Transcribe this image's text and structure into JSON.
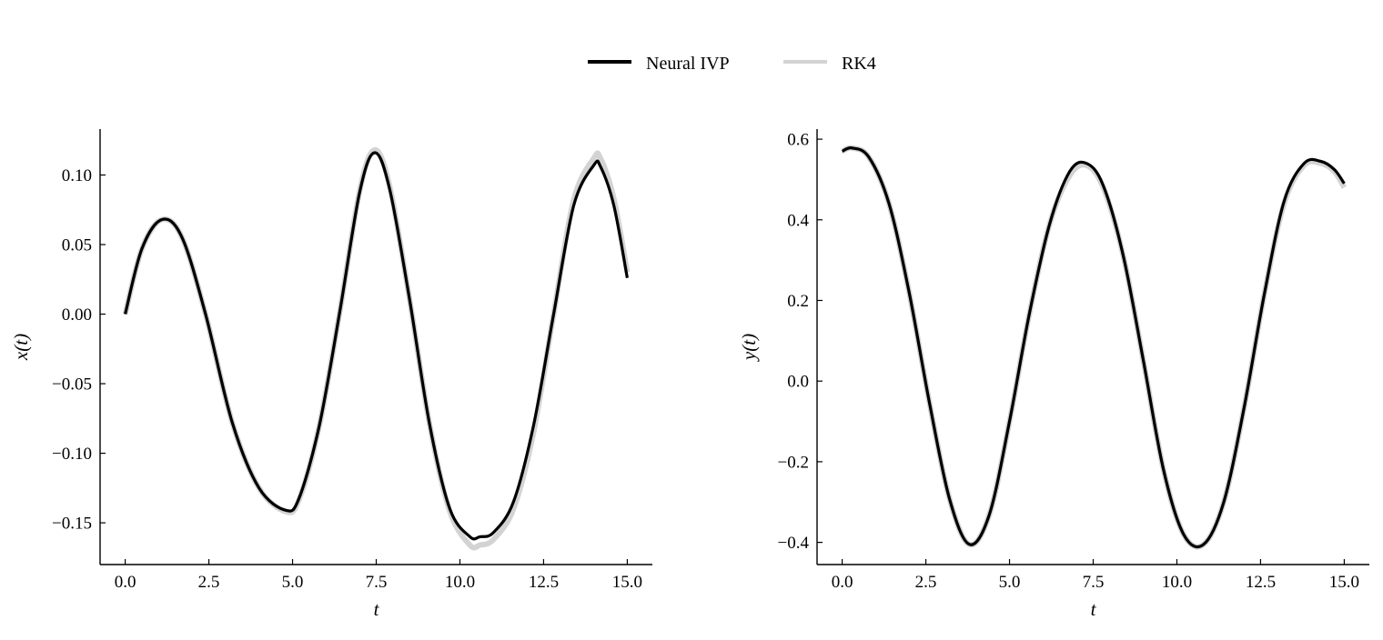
{
  "legend": {
    "items": [
      {
        "label": "Neural IVP",
        "color": "#000000"
      },
      {
        "label": "RK4",
        "color": "#d3d3d3"
      }
    ]
  },
  "chart_data": [
    {
      "type": "line",
      "xlabel": "t",
      "ylabel": "x(t)",
      "xlim": [
        -0.75,
        15.75
      ],
      "ylim": [
        -0.18,
        0.133
      ],
      "xticks": [
        0.0,
        2.5,
        5.0,
        7.5,
        10.0,
        12.5,
        15.0
      ],
      "xtick_labels": [
        "0.0",
        "2.5",
        "5.0",
        "7.5",
        "10.0",
        "12.5",
        "15.0"
      ],
      "yticks": [
        -0.15,
        -0.1,
        -0.05,
        0.0,
        0.05,
        0.1
      ],
      "ytick_labels": [
        "−0.15",
        "−0.10",
        "−0.05",
        "0.00",
        "0.05",
        "0.10"
      ],
      "grid": false,
      "series": [
        {
          "name": "RK4",
          "color": "#d3d3d3",
          "x": [
            0.0,
            0.5,
            1.1,
            1.7,
            2.4,
            3.2,
            4.0,
            4.8,
            5.2,
            5.8,
            6.4,
            7.0,
            7.45,
            7.9,
            8.5,
            9.1,
            9.7,
            10.3,
            10.6,
            11.0,
            11.6,
            12.2,
            12.8,
            13.4,
            14.0,
            14.2,
            14.6,
            15.0
          ],
          "y": [
            0.0,
            0.047,
            0.068,
            0.055,
            0.0,
            -0.078,
            -0.125,
            -0.142,
            -0.133,
            -0.08,
            0.0,
            0.088,
            0.118,
            0.092,
            0.01,
            -0.08,
            -0.142,
            -0.166,
            -0.166,
            -0.162,
            -0.14,
            -0.085,
            0.0,
            0.082,
            0.112,
            0.112,
            0.083,
            0.03
          ]
        },
        {
          "name": "Neural IVP",
          "color": "#000000",
          "x": [
            0.0,
            0.5,
            1.1,
            1.7,
            2.4,
            3.2,
            4.0,
            4.8,
            5.2,
            5.8,
            6.4,
            7.0,
            7.45,
            7.9,
            8.5,
            9.1,
            9.7,
            10.3,
            10.6,
            11.0,
            11.6,
            12.2,
            12.8,
            13.4,
            14.0,
            14.2,
            14.6,
            15.0
          ],
          "y": [
            0.0,
            0.047,
            0.068,
            0.055,
            0.0,
            -0.078,
            -0.125,
            -0.141,
            -0.132,
            -0.08,
            0.0,
            0.087,
            0.116,
            0.09,
            0.01,
            -0.08,
            -0.14,
            -0.16,
            -0.16,
            -0.157,
            -0.135,
            -0.08,
            0.0,
            0.078,
            0.107,
            0.106,
            0.078,
            0.026
          ]
        }
      ]
    },
    {
      "type": "line",
      "xlabel": "t",
      "ylabel": "y(t)",
      "xlim": [
        -0.75,
        15.75
      ],
      "ylim": [
        -0.455,
        0.625
      ],
      "xticks": [
        0.0,
        2.5,
        5.0,
        7.5,
        10.0,
        12.5,
        15.0
      ],
      "xtick_labels": [
        "0.0",
        "2.5",
        "5.0",
        "7.5",
        "10.0",
        "12.5",
        "15.0"
      ],
      "yticks": [
        -0.4,
        -0.2,
        0.0,
        0.2,
        0.4,
        0.6
      ],
      "ytick_labels": [
        "−0.4",
        "−0.2",
        "0.0",
        "0.2",
        "0.4",
        "0.6"
      ],
      "grid": false,
      "series": [
        {
          "name": "RK4",
          "color": "#d3d3d3",
          "x": [
            0.0,
            0.3,
            0.8,
            1.4,
            2.0,
            2.6,
            3.2,
            3.8,
            4.4,
            5.0,
            5.6,
            6.2,
            6.8,
            7.3,
            7.8,
            8.4,
            9.0,
            9.6,
            10.2,
            10.8,
            11.4,
            12.0,
            12.6,
            13.2,
            13.8,
            14.3,
            14.7,
            15.0
          ],
          "y": [
            0.57,
            0.578,
            0.555,
            0.44,
            0.22,
            -0.05,
            -0.29,
            -0.405,
            -0.33,
            -0.1,
            0.17,
            0.39,
            0.51,
            0.535,
            0.48,
            0.31,
            0.05,
            -0.22,
            -0.38,
            -0.405,
            -0.3,
            -0.07,
            0.21,
            0.44,
            0.535,
            0.54,
            0.52,
            0.48
          ]
        },
        {
          "name": "Neural IVP",
          "color": "#000000",
          "x": [
            0.0,
            0.3,
            0.8,
            1.4,
            2.0,
            2.6,
            3.2,
            3.8,
            4.4,
            5.0,
            5.6,
            6.2,
            6.8,
            7.3,
            7.8,
            8.4,
            9.0,
            9.6,
            10.2,
            10.8,
            11.4,
            12.0,
            12.6,
            13.2,
            13.8,
            14.3,
            14.7,
            15.0
          ],
          "y": [
            0.57,
            0.578,
            0.555,
            0.44,
            0.22,
            -0.05,
            -0.29,
            -0.405,
            -0.33,
            -0.1,
            0.17,
            0.39,
            0.52,
            0.54,
            0.485,
            0.31,
            0.05,
            -0.22,
            -0.38,
            -0.405,
            -0.3,
            -0.07,
            0.21,
            0.445,
            0.54,
            0.545,
            0.525,
            0.49
          ]
        }
      ]
    }
  ]
}
